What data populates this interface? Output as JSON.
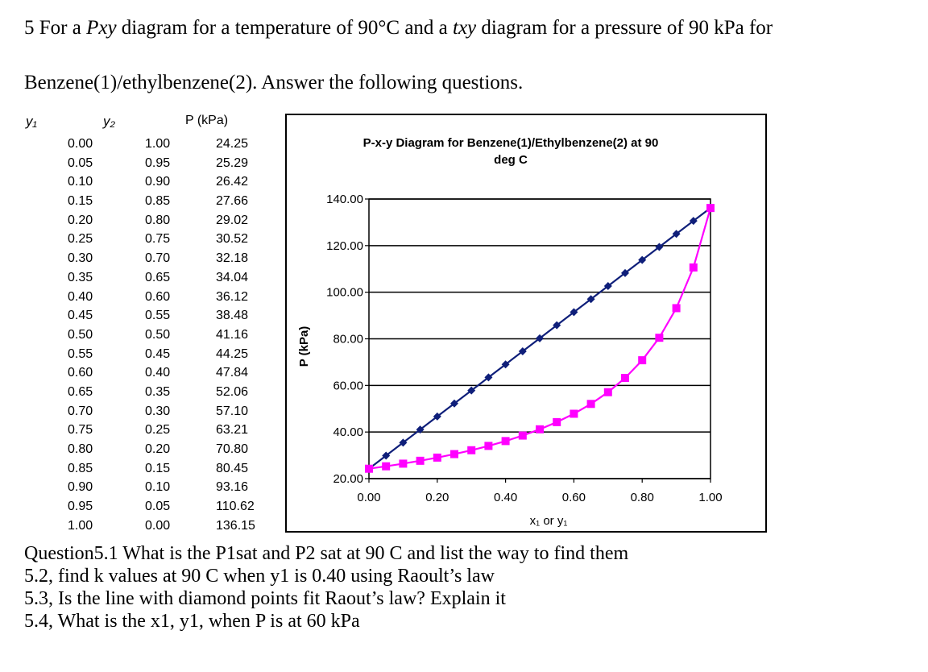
{
  "intro": {
    "line1_a": "5 For a ",
    "line1_b": "Pxy",
    "line1_c": " diagram for a temperature of 90°C and a ",
    "line1_d": "txy",
    "line1_e": " diagram for a pressure of 90 kPa for",
    "line2": "Benzene(1)/ethylbenzene(2). Answer the following questions."
  },
  "table": {
    "headers": {
      "y1": "y₁",
      "y2": "y₂",
      "p": "P (kPa)"
    },
    "rows": [
      [
        "0.00",
        "1.00",
        "24.25"
      ],
      [
        "0.05",
        "0.95",
        "25.29"
      ],
      [
        "0.10",
        "0.90",
        "26.42"
      ],
      [
        "0.15",
        "0.85",
        "27.66"
      ],
      [
        "0.20",
        "0.80",
        "29.02"
      ],
      [
        "0.25",
        "0.75",
        "30.52"
      ],
      [
        "0.30",
        "0.70",
        "32.18"
      ],
      [
        "0.35",
        "0.65",
        "34.04"
      ],
      [
        "0.40",
        "0.60",
        "36.12"
      ],
      [
        "0.45",
        "0.55",
        "38.48"
      ],
      [
        "0.50",
        "0.50",
        "41.16"
      ],
      [
        "0.55",
        "0.45",
        "44.25"
      ],
      [
        "0.60",
        "0.40",
        "47.84"
      ],
      [
        "0.65",
        "0.35",
        "52.06"
      ],
      [
        "0.70",
        "0.30",
        "57.10"
      ],
      [
        "0.75",
        "0.25",
        "63.21"
      ],
      [
        "0.80",
        "0.20",
        "70.80"
      ],
      [
        "0.85",
        "0.15",
        "80.45"
      ],
      [
        "0.90",
        "0.10",
        "93.16"
      ],
      [
        "0.95",
        "0.05",
        "110.62"
      ],
      [
        "1.00",
        "0.00",
        "136.15"
      ]
    ]
  },
  "chart_data": {
    "type": "line",
    "title_line1": "P-x-y Diagram for Benzene(1)/Ethylbenzene(2) at 90",
    "title_line2": "deg C",
    "xlabel": "x₁ or y₁",
    "ylabel": "P (kPa)",
    "xlim": [
      0,
      1
    ],
    "ylim": [
      20,
      140
    ],
    "xticks": [
      "0.00",
      "0.20",
      "0.40",
      "0.60",
      "0.80",
      "1.00"
    ],
    "yticks": [
      "20.00",
      "40.00",
      "60.00",
      "80.00",
      "100.00",
      "120.00",
      "140.00"
    ],
    "grid": "horizontal",
    "x": [
      0.0,
      0.05,
      0.1,
      0.15,
      0.2,
      0.25,
      0.3,
      0.35,
      0.4,
      0.45,
      0.5,
      0.55,
      0.6,
      0.65,
      0.7,
      0.75,
      0.8,
      0.85,
      0.9,
      0.95,
      1.0
    ],
    "series": [
      {
        "marker": "diamond",
        "color": "#0f1f7a",
        "values": [
          24.25,
          29.85,
          35.45,
          41.05,
          46.65,
          52.25,
          57.84,
          63.44,
          69.04,
          74.64,
          80.2,
          85.84,
          91.44,
          97.04,
          102.64,
          108.24,
          113.84,
          119.44,
          125.04,
          130.64,
          136.15
        ]
      },
      {
        "marker": "square",
        "color": "#ff00ff",
        "values": [
          24.25,
          25.29,
          26.42,
          27.66,
          29.02,
          30.52,
          32.18,
          34.04,
          36.12,
          38.48,
          41.16,
          44.25,
          47.84,
          52.06,
          57.1,
          63.21,
          70.8,
          80.45,
          93.16,
          110.62,
          136.15
        ]
      }
    ]
  },
  "questions": [
    "Question5.1 What is the P1sat and P2 sat at 90 C and list the way to find them",
    "5.2, find k values at 90 C when y1 is 0.40 using Raoult’s law",
    "5.3, Is the line with diamond points fit Raout’s law? Explain it",
    "5.4, What is the x1, y1, when P is at 60 kPa"
  ]
}
